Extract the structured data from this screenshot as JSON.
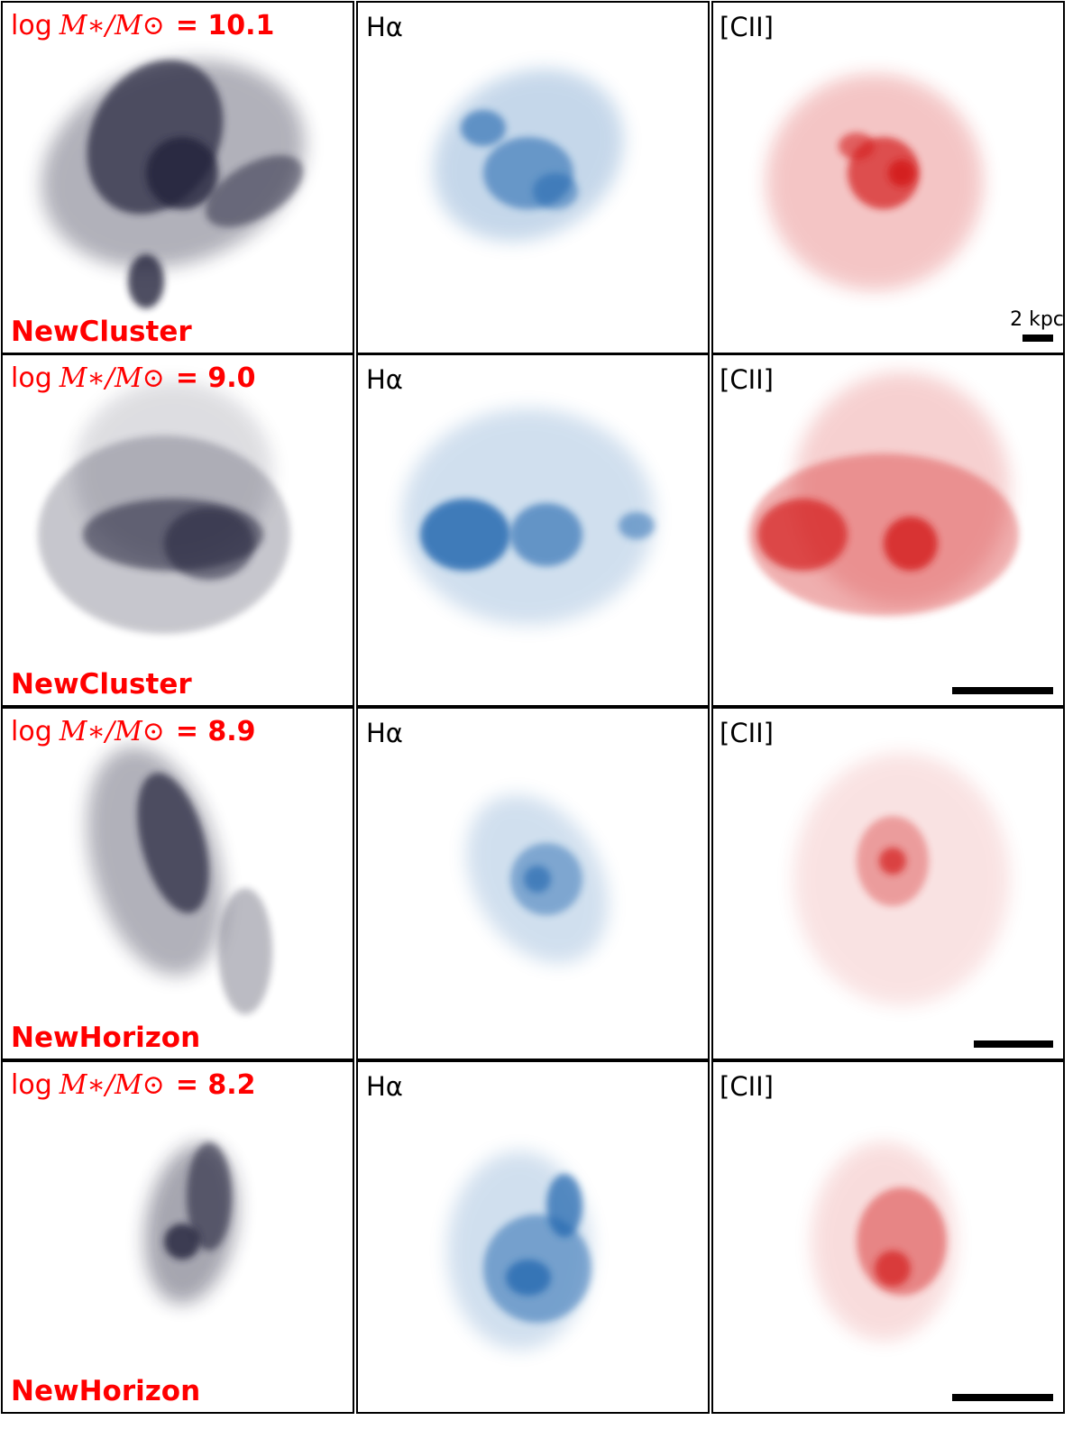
{
  "figure": {
    "rows": [
      {
        "mass_log": "log",
        "mass_symbol": "M∗/M⊙",
        "mass_value": "= 10.1",
        "simulation": "NewCluster",
        "halpha": "Hα",
        "cii": "[CII]",
        "scale_label": "2 kpc"
      },
      {
        "mass_log": "log",
        "mass_symbol": "M∗/M⊙",
        "mass_value": "= 9.0",
        "simulation": "NewCluster",
        "halpha": "Hα",
        "cii": "[CII]"
      },
      {
        "mass_log": "log",
        "mass_symbol": "M∗/M⊙",
        "mass_value": "= 8.9",
        "simulation": "NewHorizon",
        "halpha": "Hα",
        "cii": "[CII]"
      },
      {
        "mass_log": "log",
        "mass_symbol": "M∗/M⊙",
        "mass_value": "= 8.2",
        "simulation": "NewHorizon",
        "halpha": "Hα",
        "cii": "[CII]"
      }
    ]
  }
}
